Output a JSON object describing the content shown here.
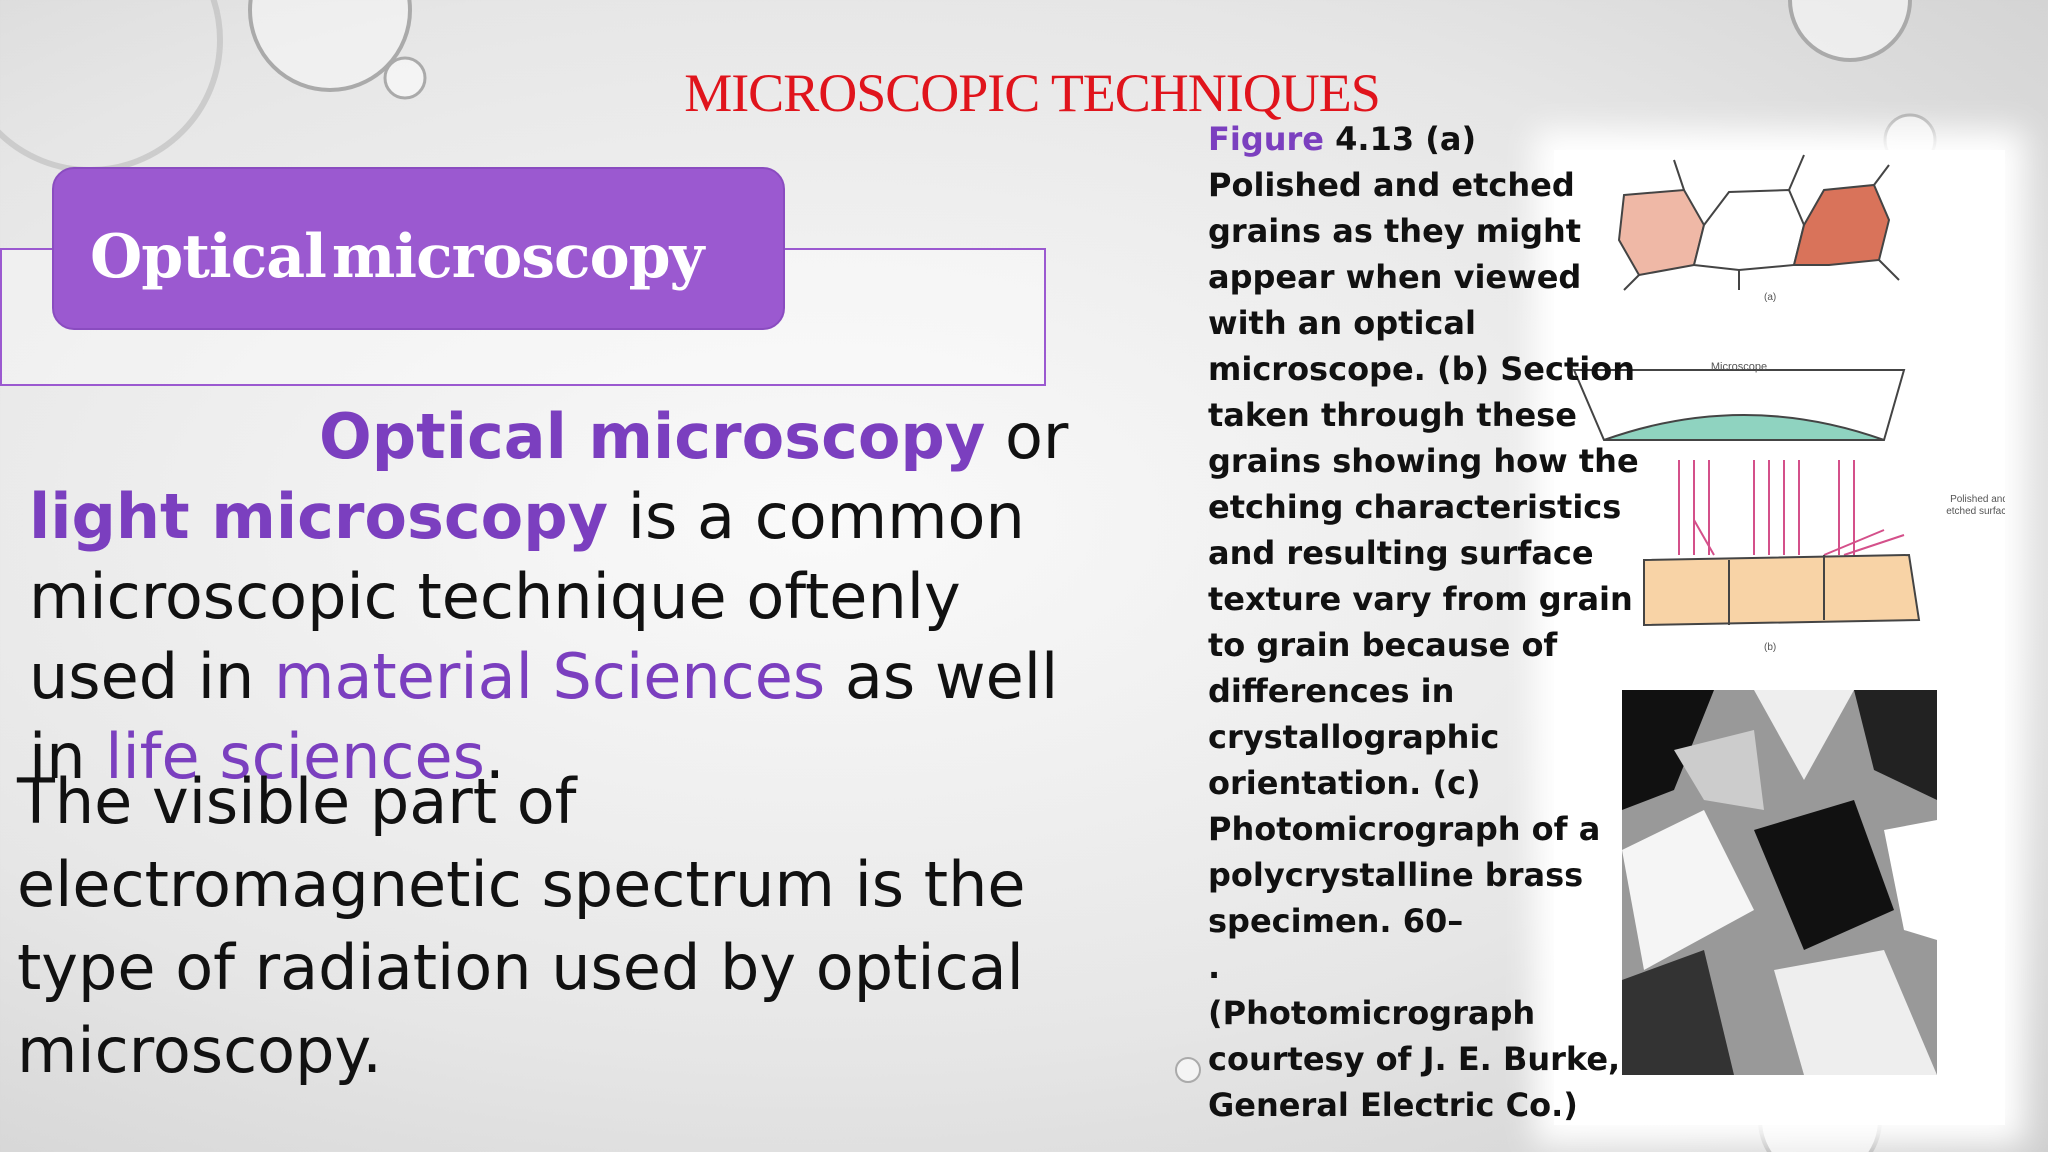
{
  "slide": {
    "title": "MICROSCOPIC TECHNIQUES",
    "heading": "Optical microscopy",
    "paragraph_1": {
      "runs": [
        {
          "text": "Optical microscopy",
          "color": "#7b3fbf",
          "bold": true
        },
        {
          "text": " or ",
          "color": "#111111",
          "bold": false
        },
        {
          "text": "light microscopy",
          "color": "#7b3fbf",
          "bold": true
        },
        {
          "text": " is a common microscopic technique oftenly used in ",
          "color": "#111111",
          "bold": false
        },
        {
          "text": "material Sciences",
          "color": "#7b3fbf",
          "bold": false
        },
        {
          "text": " as well in ",
          "color": "#111111",
          "bold": false
        },
        {
          "text": "life sciences",
          "color": "#7b3fbf",
          "bold": false
        },
        {
          "text": ".",
          "color": "#111111",
          "bold": false
        }
      ]
    },
    "paragraph_2": {
      "lines": [
        "The visible part of",
        "electromagnetic spectrum is the",
        "type of radiation used by optical",
        "microscopy."
      ]
    },
    "caption": {
      "label": "Figure",
      "lines": [
        "4.13 (a)",
        "Polished and etched",
        "grains as they might",
        "appear when viewed",
        "with an optical",
        "microscope. (b) Section",
        "taken through these",
        "grains showing how the",
        "etching characteristics",
        "and resulting surface",
        "texture vary from grain",
        "to grain because of",
        "differences in",
        "crystallographic",
        "orientation. (c)",
        "Photomicrograph of a",
        "polycrystalline brass",
        "specimen. 60–",
        ".",
        "(Photomicrograph",
        "courtesy of J. E. Burke,",
        "General Electric Co.)"
      ]
    },
    "figure": {
      "label_a": "(a)",
      "label_microscope": "Microscope",
      "label_surface_1": "Polished and",
      "label_surface_2": "etched surface",
      "label_b": "(b)"
    }
  }
}
